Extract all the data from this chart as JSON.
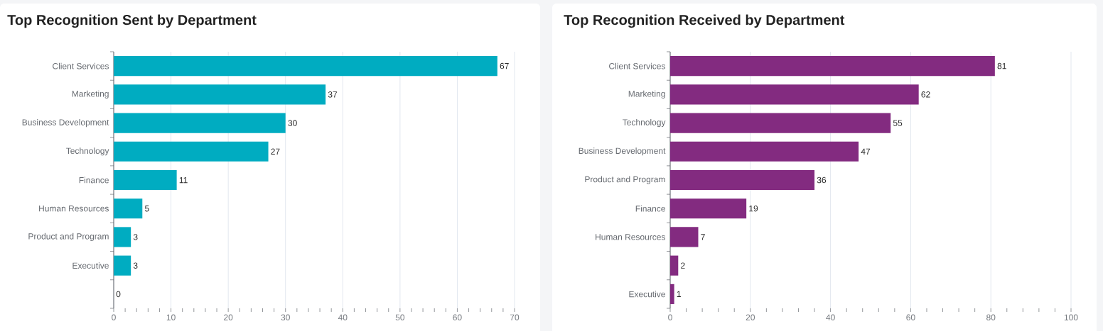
{
  "chart_data": [
    {
      "type": "bar",
      "orientation": "horizontal",
      "title": "Top Recognition Sent by Department",
      "categories": [
        "Client Services",
        "Marketing",
        "Business Development",
        "Technology",
        "Finance",
        "Human Resources",
        "Product and Program",
        "Executive",
        null
      ],
      "values": [
        67,
        37,
        30,
        27,
        11,
        5,
        3,
        3,
        0
      ],
      "color": "#00acc1",
      "xlim": [
        0,
        70
      ],
      "xticks": [
        0,
        {
          "value": 2,
          "label": null
        },
        {
          "value": 4,
          "label": null
        },
        {
          "value": 6,
          "label": null
        },
        {
          "value": 8,
          "label": null
        },
        10,
        {
          "value": 12,
          "label": null
        },
        {
          "value": 14,
          "label": null
        },
        {
          "value": 16,
          "label": null
        },
        {
          "value": 18,
          "label": null
        },
        20,
        {
          "value": 22,
          "label": null
        },
        {
          "value": 24,
          "label": null
        },
        {
          "value": 26,
          "label": null
        },
        {
          "value": 28,
          "label": null
        },
        30,
        {
          "value": 32,
          "label": null
        },
        {
          "value": 34,
          "label": null
        },
        {
          "value": 36,
          "label": null
        },
        {
          "value": 38,
          "label": null
        },
        40,
        {
          "value": 42,
          "label": null
        },
        {
          "value": 44,
          "label": null
        },
        {
          "value": 46,
          "label": null
        },
        {
          "value": 48,
          "label": null
        },
        50,
        {
          "value": 52,
          "label": null
        },
        {
          "value": 54,
          "label": null
        },
        {
          "value": 56,
          "label": null
        },
        {
          "value": 58,
          "label": null
        },
        60,
        {
          "value": 62,
          "label": null
        },
        {
          "value": 64,
          "label": null
        },
        {
          "value": 66,
          "label": null
        },
        {
          "value": 68,
          "label": null
        },
        70
      ],
      "grid": "x",
      "data_labels": true
    },
    {
      "type": "bar",
      "orientation": "horizontal",
      "title": "Top Recognition Received by Department",
      "categories": [
        "Client Services",
        "Marketing",
        "Technology",
        "Business Development",
        "Product and Program",
        "Finance",
        "Human Resources",
        null,
        "Executive"
      ],
      "values": [
        81,
        62,
        55,
        47,
        36,
        19,
        7,
        2,
        1
      ],
      "color": "#832b80",
      "xlim": [
        0,
        100
      ],
      "xticks": [
        0,
        {
          "value": 4,
          "label": null
        },
        {
          "value": 8,
          "label": null
        },
        {
          "value": 12,
          "label": null
        },
        {
          "value": 16,
          "label": null
        },
        20,
        {
          "value": 24,
          "label": null
        },
        {
          "value": 28,
          "label": null
        },
        {
          "value": 32,
          "label": null
        },
        {
          "value": 36,
          "label": null
        },
        40,
        {
          "value": 44,
          "label": null
        },
        {
          "value": 48,
          "label": null
        },
        {
          "value": 52,
          "label": null
        },
        {
          "value": 56,
          "label": null
        },
        60,
        {
          "value": 64,
          "label": null
        },
        {
          "value": 68,
          "label": null
        },
        {
          "value": 72,
          "label": null
        },
        {
          "value": 76,
          "label": null
        },
        80,
        {
          "value": 84,
          "label": null
        },
        {
          "value": 88,
          "label": null
        },
        {
          "value": 92,
          "label": null
        },
        {
          "value": 96,
          "label": null
        },
        100
      ],
      "grid": "x",
      "data_labels": true
    }
  ]
}
